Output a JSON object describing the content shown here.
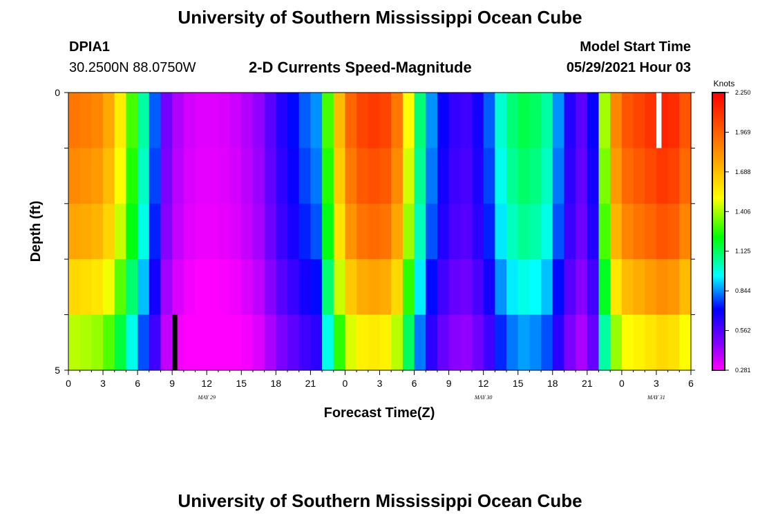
{
  "header": {
    "title": "University of Southern Mississippi Ocean Cube",
    "footer_title": "University of Southern Mississippi Ocean Cube",
    "station": "DPIA1",
    "coords": "30.2500N  88.0750W",
    "subtitle": "2-D Currents Speed-Magnitude",
    "model_label": "Model Start Time",
    "model_time": "05/29/2021 Hour 03"
  },
  "chart_data": {
    "type": "heatmap",
    "title": "2-D Currents Speed-Magnitude",
    "xlabel": "Forecast Time(Z)",
    "ylabel": "Depth (ft)",
    "x_tick_labels": [
      "0",
      "3",
      "6",
      "9",
      "12",
      "15",
      "18",
      "21",
      "0",
      "3",
      "6",
      "9",
      "12",
      "15",
      "18",
      "21",
      "0",
      "3",
      "6"
    ],
    "date_labels": [
      {
        "text": "MAY 29",
        "hour": 12
      },
      {
        "text": "MAY 30",
        "hour": 36
      },
      {
        "text": "MAY 31",
        "hour": 51
      }
    ],
    "y_tick_labels": [
      {
        "text": "0",
        "depth": 0
      },
      {
        "text": "5",
        "depth": 5
      }
    ],
    "ylim": [
      0,
      5
    ],
    "hours": 54,
    "depth_levels": 5,
    "colorbar": {
      "unit": "Knots",
      "labels": [
        "2.250",
        "1.969",
        "1.688",
        "1.406",
        "1.125",
        "0.844",
        "0.562",
        "0.281"
      ],
      "range": [
        0.281,
        2.25
      ]
    },
    "markers": [
      {
        "name": "start-marker",
        "hour": 9,
        "depth_bin": 4,
        "color": "#000000"
      },
      {
        "name": "now-marker",
        "hour": 51,
        "depth_bin": 0,
        "color": "#ffffff"
      }
    ],
    "speed_profile": [
      {
        "hour": 0,
        "v": 1.9
      },
      {
        "hour": 1,
        "v": 1.88
      },
      {
        "hour": 2,
        "v": 1.85
      },
      {
        "hour": 3,
        "v": 1.75
      },
      {
        "hour": 4,
        "v": 1.55
      },
      {
        "hour": 5,
        "v": 1.3
      },
      {
        "hour": 6,
        "v": 1.05
      },
      {
        "hour": 7,
        "v": 0.8
      },
      {
        "hour": 8,
        "v": 0.5
      },
      {
        "hour": 9,
        "v": 0.4
      },
      {
        "hour": 10,
        "v": 0.35
      },
      {
        "hour": 11,
        "v": 0.33
      },
      {
        "hour": 12,
        "v": 0.33
      },
      {
        "hour": 13,
        "v": 0.34
      },
      {
        "hour": 14,
        "v": 0.36
      },
      {
        "hour": 15,
        "v": 0.4
      },
      {
        "hour": 16,
        "v": 0.45
      },
      {
        "hour": 17,
        "v": 0.55
      },
      {
        "hour": 18,
        "v": 0.65
      },
      {
        "hour": 19,
        "v": 0.72
      },
      {
        "hour": 20,
        "v": 0.8
      },
      {
        "hour": 21,
        "v": 0.85
      },
      {
        "hour": 22,
        "v": 1.3
      },
      {
        "hour": 23,
        "v": 1.7
      },
      {
        "hour": 24,
        "v": 1.95
      },
      {
        "hour": 25,
        "v": 2.05
      },
      {
        "hour": 26,
        "v": 2.08
      },
      {
        "hour": 27,
        "v": 2.05
      },
      {
        "hour": 28,
        "v": 1.9
      },
      {
        "hour": 29,
        "v": 1.5
      },
      {
        "hour": 30,
        "v": 1.1
      },
      {
        "hour": 31,
        "v": 0.85
      },
      {
        "hour": 32,
        "v": 0.7
      },
      {
        "hour": 33,
        "v": 0.62
      },
      {
        "hour": 34,
        "v": 0.6
      },
      {
        "hour": 35,
        "v": 0.68
      },
      {
        "hour": 36,
        "v": 0.8
      },
      {
        "hour": 37,
        "v": 1.0
      },
      {
        "hour": 38,
        "v": 1.1
      },
      {
        "hour": 39,
        "v": 1.15
      },
      {
        "hour": 40,
        "v": 1.12
      },
      {
        "hour": 41,
        "v": 1.05
      },
      {
        "hour": 42,
        "v": 0.85
      },
      {
        "hour": 43,
        "v": 0.65
      },
      {
        "hour": 44,
        "v": 0.55
      },
      {
        "hour": 45,
        "v": 0.7
      },
      {
        "hour": 46,
        "v": 1.4
      },
      {
        "hour": 47,
        "v": 1.85
      },
      {
        "hour": 48,
        "v": 2.0
      },
      {
        "hour": 49,
        "v": 2.05
      },
      {
        "hour": 50,
        "v": 2.1
      },
      {
        "hour": 51,
        "v": 2.15
      },
      {
        "hour": 52,
        "v": 2.12
      },
      {
        "hour": 53,
        "v": 2.0
      }
    ],
    "depth_factor": [
      1.0,
      0.97,
      0.93,
      0.85,
      0.75
    ]
  }
}
